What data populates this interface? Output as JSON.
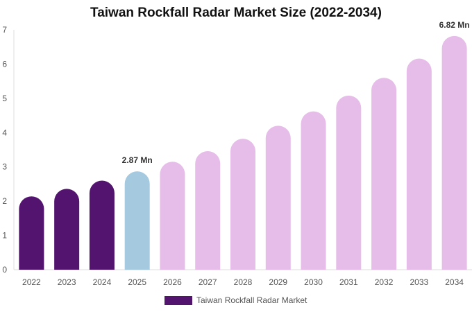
{
  "title": "Taiwan Rockfall Radar Market Size (2022-2034)",
  "chart_data": {
    "type": "bar",
    "title": "Taiwan Rockfall Radar Market Size (2022-2034)",
    "categories": [
      "2022",
      "2023",
      "2024",
      "2025",
      "2026",
      "2027",
      "2028",
      "2029",
      "2030",
      "2031",
      "2032",
      "2033",
      "2034"
    ],
    "series": [
      {
        "name": "Taiwan Rockfall Radar Market",
        "values": [
          2.14,
          2.36,
          2.6,
          2.87,
          3.15,
          3.46,
          3.82,
          4.2,
          4.62,
          5.08,
          5.6,
          6.16,
          6.82
        ]
      }
    ],
    "data_labels": [
      {
        "category": "2025",
        "text": "2.87 Mn"
      },
      {
        "category": "2034",
        "text": "6.82 Mn"
      }
    ],
    "ylim": [
      0,
      7
    ],
    "yticks": [
      0,
      1,
      2,
      3,
      4,
      5,
      6,
      7
    ],
    "xlabel": "",
    "ylabel": "",
    "grid": false,
    "legend_position": "bottom-center",
    "colors": {
      "historical": "#531470",
      "base_year": "#a5cadf",
      "forecast": "#e6bce8",
      "axis": "#dddddd",
      "tick_text": "#555555",
      "label_text": "#333333"
    },
    "color_groups": [
      "historical",
      "historical",
      "historical",
      "base_year",
      "forecast",
      "forecast",
      "forecast",
      "forecast",
      "forecast",
      "forecast",
      "forecast",
      "forecast",
      "forecast"
    ]
  },
  "legend": {
    "label": "Taiwan Rockfall Radar Market"
  }
}
